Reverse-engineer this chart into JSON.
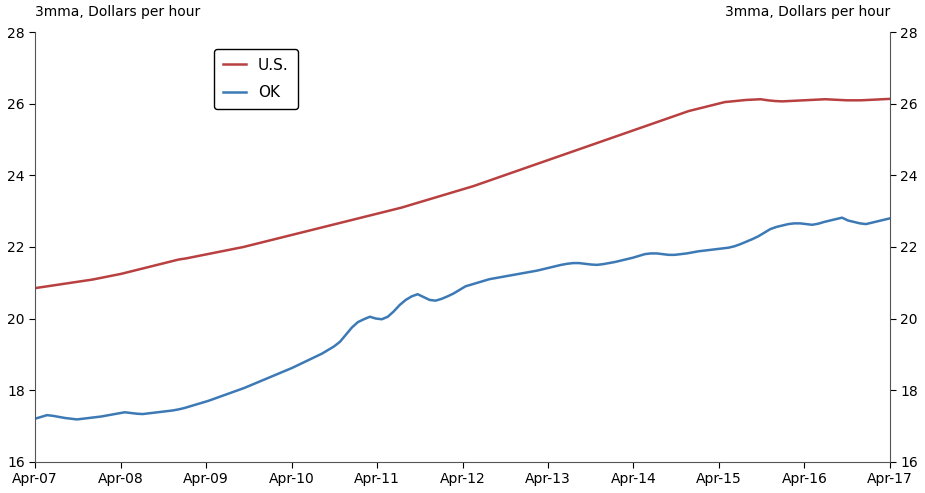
{
  "ylabel_left": "3mma, Dollars per hour",
  "ylabel_right": "3mma, Dollars per hour",
  "ylim": [
    16,
    28
  ],
  "yticks": [
    16,
    18,
    20,
    22,
    24,
    26,
    28
  ],
  "x_labels": [
    "Apr-07",
    "Apr-08",
    "Apr-09",
    "Apr-10",
    "Apr-11",
    "Apr-12",
    "Apr-13",
    "Apr-14",
    "Apr-15",
    "Apr-16",
    "Apr-17"
  ],
  "legend": [
    "U.S.",
    "OK"
  ],
  "us_color": "#b94040",
  "ok_color": "#3d7ab5",
  "line_width": 1.8,
  "us_data": [
    20.85,
    20.88,
    20.91,
    20.94,
    20.97,
    21.0,
    21.03,
    21.06,
    21.09,
    21.13,
    21.17,
    21.21,
    21.25,
    21.3,
    21.35,
    21.4,
    21.45,
    21.5,
    21.55,
    21.6,
    21.65,
    21.68,
    21.72,
    21.76,
    21.8,
    21.84,
    21.88,
    21.92,
    21.96,
    22.0,
    22.05,
    22.1,
    22.15,
    22.2,
    22.25,
    22.3,
    22.35,
    22.4,
    22.45,
    22.5,
    22.55,
    22.6,
    22.65,
    22.7,
    22.75,
    22.8,
    22.85,
    22.9,
    22.95,
    23.0,
    23.05,
    23.1,
    23.16,
    23.22,
    23.28,
    23.34,
    23.4,
    23.46,
    23.52,
    23.58,
    23.64,
    23.7,
    23.77,
    23.84,
    23.91,
    23.98,
    24.05,
    24.12,
    24.19,
    24.26,
    24.33,
    24.4,
    24.47,
    24.54,
    24.61,
    24.68,
    24.75,
    24.82,
    24.89,
    24.96,
    25.03,
    25.1,
    25.17,
    25.24,
    25.31,
    25.38,
    25.45,
    25.52,
    25.59,
    25.66,
    25.73,
    25.8,
    25.85,
    25.9,
    25.95,
    26.0,
    26.05,
    26.07,
    26.09,
    26.11,
    26.12,
    26.13,
    26.1,
    26.08,
    26.07,
    26.08,
    26.09,
    26.1,
    26.11,
    26.12,
    26.13,
    26.12,
    26.11,
    26.1,
    26.1,
    26.1,
    26.11,
    26.12,
    26.13,
    26.14
  ],
  "ok_data": [
    17.2,
    17.25,
    17.3,
    17.28,
    17.25,
    17.22,
    17.2,
    17.18,
    17.2,
    17.22,
    17.24,
    17.26,
    17.29,
    17.32,
    17.35,
    17.38,
    17.36,
    17.34,
    17.33,
    17.35,
    17.37,
    17.39,
    17.41,
    17.43,
    17.46,
    17.5,
    17.55,
    17.6,
    17.65,
    17.7,
    17.76,
    17.82,
    17.88,
    17.94,
    18.0,
    18.06,
    18.13,
    18.2,
    18.27,
    18.34,
    18.41,
    18.48,
    18.55,
    18.62,
    18.7,
    18.78,
    18.86,
    18.94,
    19.02,
    19.12,
    19.22,
    19.35,
    19.55,
    19.75,
    19.9,
    19.98,
    20.05,
    20.0,
    19.98,
    20.05,
    20.2,
    20.38,
    20.52,
    20.62,
    20.68,
    20.6,
    20.52,
    20.5,
    20.55,
    20.62,
    20.7,
    20.8,
    20.9,
    20.95,
    21.0,
    21.05,
    21.1,
    21.13,
    21.16,
    21.19,
    21.22,
    21.25,
    21.28,
    21.31,
    21.34,
    21.38,
    21.42,
    21.46,
    21.5,
    21.53,
    21.55,
    21.55,
    21.53,
    21.51,
    21.5,
    21.52,
    21.55,
    21.58,
    21.62,
    21.66,
    21.7,
    21.75,
    21.8,
    21.82,
    21.82,
    21.8,
    21.78,
    21.78,
    21.8,
    21.82,
    21.85,
    21.88,
    21.9,
    21.92,
    21.94,
    21.96,
    21.98,
    22.02,
    22.08,
    22.15,
    22.22,
    22.3,
    22.4,
    22.5,
    22.56,
    22.6,
    22.64,
    22.66,
    22.66,
    22.64,
    22.62,
    22.65,
    22.7,
    22.74,
    22.78,
    22.82,
    22.74,
    22.7,
    22.66,
    22.64,
    22.68,
    22.72,
    22.76,
    22.8
  ]
}
